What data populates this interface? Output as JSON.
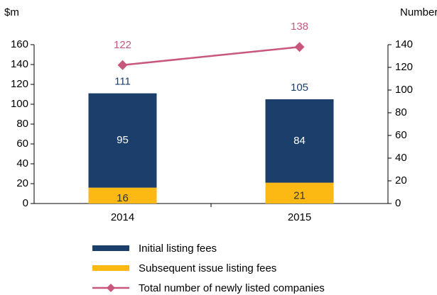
{
  "chart_data": {
    "type": "bar",
    "y_label": "$m",
    "y2_label": "Number",
    "categories": [
      "2014",
      "2015"
    ],
    "stacked": true,
    "series": [
      {
        "name": "Initial listing fees",
        "color": "#1b3f6a",
        "values": [
          95,
          84
        ]
      },
      {
        "name": "Subsequent issue listing fees",
        "color": "#fdb913",
        "values": [
          16,
          21
        ]
      },
      {
        "name": "Total number of newly listed companies",
        "type": "line",
        "axis": "y2",
        "color": "#c8577b",
        "values": [
          122,
          138
        ]
      }
    ],
    "total_labels": [
      111,
      105
    ],
    "ylim": [
      0,
      160
    ],
    "yticks": [
      0,
      20,
      40,
      60,
      80,
      100,
      120,
      140,
      160
    ],
    "y2lim": [
      0,
      140
    ],
    "y2ticks": [
      0,
      20,
      40,
      60,
      80,
      100,
      120,
      140
    ],
    "legend": "bottom"
  }
}
